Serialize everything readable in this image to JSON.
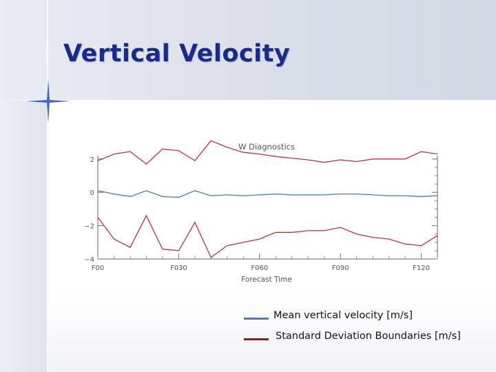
{
  "slide": {
    "title": "Vertical Velocity"
  },
  "chart_data": {
    "type": "line",
    "title": "W Diagnostics",
    "xlabel": "Forecast Time",
    "ylabel": "",
    "ylim": [
      -4,
      2.2
    ],
    "y_ticks": [
      2,
      0,
      -2,
      -4
    ],
    "y_tick_labels": [
      "2",
      "0",
      "−2",
      "−4"
    ],
    "x_tick_labels": [
      "F00",
      "F030",
      "F060",
      "F090",
      "F120"
    ],
    "x_tick_index": [
      0,
      5,
      10,
      15,
      20
    ],
    "x_index": [
      0,
      1,
      2,
      3,
      4,
      5,
      6,
      7,
      8,
      9,
      10,
      11,
      12,
      13,
      14,
      15,
      16,
      17,
      18,
      19,
      20,
      21
    ],
    "series": [
      {
        "legend": "Standard Deviation Boundaries [m/s]",
        "color": "#c03030",
        "values": [
          1.9,
          2.3,
          2.45,
          1.7,
          2.6,
          2.5,
          1.9,
          3.1,
          2.7,
          2.4,
          2.3,
          2.15,
          2.05,
          1.95,
          1.8,
          1.95,
          1.85,
          2.0,
          2.0,
          2.0,
          2.45,
          2.3
        ]
      },
      {
        "legend": "Mean vertical velocity [m/s]",
        "color": "#3a78c8",
        "values": [
          0.1,
          -0.1,
          -0.25,
          0.1,
          -0.25,
          -0.3,
          0.1,
          -0.2,
          -0.15,
          -0.2,
          -0.15,
          -0.1,
          -0.15,
          -0.15,
          -0.15,
          -0.1,
          -0.1,
          -0.15,
          -0.2,
          -0.2,
          -0.25,
          -0.2
        ]
      },
      {
        "legend": "Standard Deviation Boundaries [m/s]",
        "color": "#c03030",
        "values": [
          -1.5,
          -2.8,
          -3.3,
          -1.4,
          -3.4,
          -3.5,
          -1.8,
          -3.9,
          -3.2,
          -3.0,
          -2.8,
          -2.4,
          -2.4,
          -2.3,
          -2.3,
          -2.1,
          -2.5,
          -2.7,
          -2.8,
          -3.1,
          -3.2,
          -2.6
        ]
      }
    ],
    "legend_entries": [
      {
        "label": "Mean vertical velocity [m/s]",
        "color": "#4a78c8"
      },
      {
        "label": "Standard Deviation Boundaries [m/s]",
        "color": "#b01010"
      }
    ]
  }
}
